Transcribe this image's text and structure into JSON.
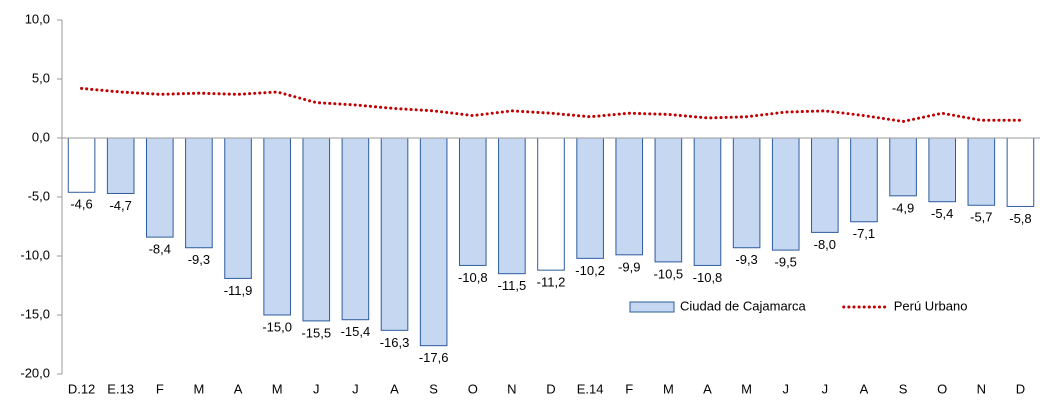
{
  "chart_data": {
    "type": "bar",
    "categories": [
      "D.12",
      "E.13",
      "F",
      "M",
      "A",
      "M",
      "J",
      "J",
      "A",
      "S",
      "O",
      "N",
      "D",
      "E.14",
      "F",
      "M",
      "A",
      "M",
      "J",
      "J",
      "A",
      "S",
      "O",
      "N",
      "D"
    ],
    "series": [
      {
        "name": "Ciudad de Cajamarca",
        "type": "bar",
        "color": "#c6d7f1",
        "edge_color": "#2e5c9e",
        "point_colors": [
          "#ffffff",
          "#c6d7f1",
          "#c6d7f1",
          "#c6d7f1",
          "#c6d7f1",
          "#c6d7f1",
          "#c6d7f1",
          "#c6d7f1",
          "#c6d7f1",
          "#c6d7f1",
          "#c6d7f1",
          "#c6d7f1",
          "#ffffff",
          "#c6d7f1",
          "#c6d7f1",
          "#c6d7f1",
          "#c6d7f1",
          "#c6d7f1",
          "#c6d7f1",
          "#c6d7f1",
          "#c6d7f1",
          "#c6d7f1",
          "#c6d7f1",
          "#c6d7f1",
          "#ffffff"
        ],
        "values": [
          -4.6,
          -4.7,
          -8.4,
          -9.3,
          -11.9,
          -15.0,
          -15.5,
          -15.4,
          -16.3,
          -17.6,
          -10.8,
          -11.5,
          -11.2,
          -10.2,
          -9.9,
          -10.5,
          -10.8,
          -9.3,
          -9.5,
          -8.0,
          -7.1,
          -4.9,
          -5.4,
          -5.7,
          -5.8
        ],
        "value_labels": [
          "-4,6",
          "-4,7",
          "-8,4",
          "-9,3",
          "-11,9",
          "-15,0",
          "-15,5",
          "-15,4",
          "-16,3",
          "-17,6",
          "-10,8",
          "-11,5",
          "-11,2",
          "-10,2",
          "-9,9",
          "-10,5",
          "-10,8",
          "-9,3",
          "-9,5",
          "-8,0",
          "-7,1",
          "-4,9",
          "-5,4",
          "-5,7",
          "-5,8"
        ]
      },
      {
        "name": "Perú Urbano",
        "type": "line",
        "color": "#c00000",
        "dash": "dotted",
        "values": [
          4.2,
          3.9,
          3.7,
          3.8,
          3.7,
          3.9,
          3.0,
          2.8,
          2.5,
          2.3,
          1.9,
          2.3,
          2.1,
          1.8,
          2.1,
          2.0,
          1.7,
          1.8,
          2.2,
          2.3,
          1.9,
          1.4,
          2.1,
          1.5,
          1.5
        ]
      }
    ],
    "ylim": [
      -20,
      10
    ],
    "yticks": [
      {
        "value": -20,
        "label": "-20,0"
      },
      {
        "value": -15,
        "label": "-15,0"
      },
      {
        "value": -10,
        "label": "-10,0"
      },
      {
        "value": -5,
        "label": "-5,0"
      },
      {
        "value": 0,
        "label": "0,0"
      },
      {
        "value": 5,
        "label": "5,0"
      },
      {
        "value": 10,
        "label": "10,0"
      }
    ],
    "grid": false,
    "legend": "lower right"
  }
}
